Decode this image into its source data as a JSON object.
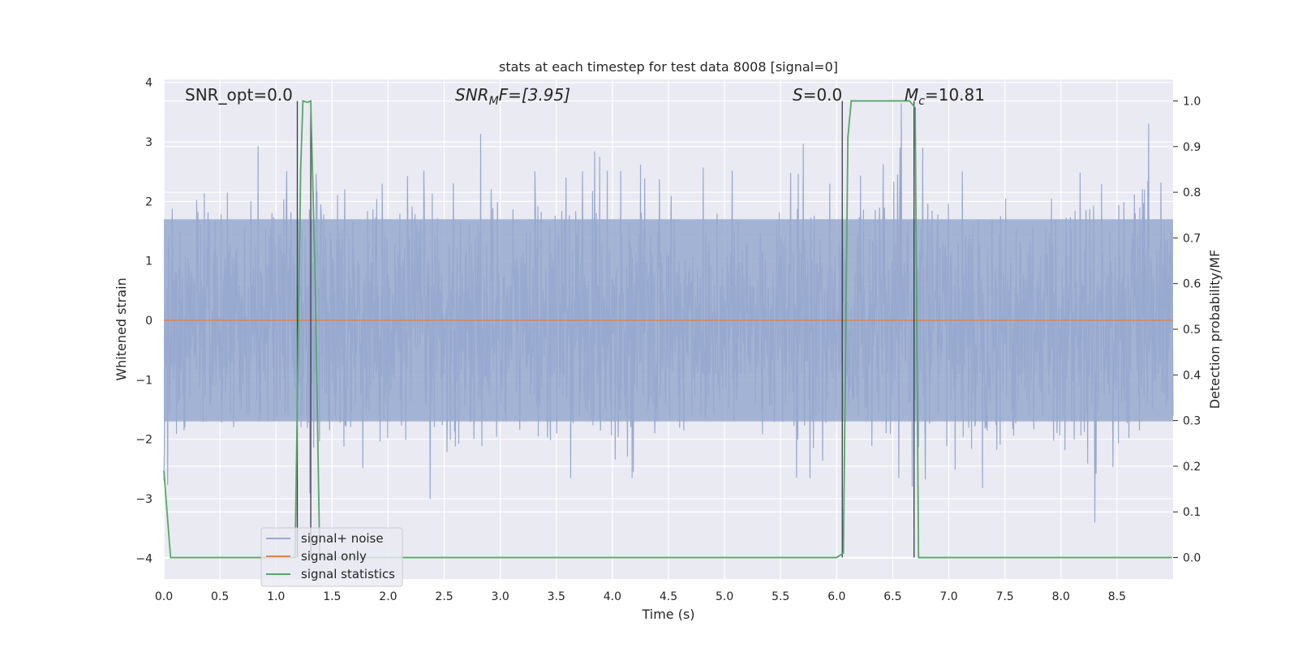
{
  "chart_data": {
    "type": "line",
    "title": "stats at each timestep for test data 8008 [signal=0]",
    "xlabel": "Time (s)",
    "ylabel_left": "Whitened strain",
    "ylabel_right": "Detection probability/MF",
    "xlim": [
      0.0,
      9.0
    ],
    "ylim_left": [
      -4.35,
      4.05
    ],
    "ylim_right": [
      -0.047,
      1.047
    ],
    "x_ticks": [
      "0.0",
      "0.5",
      "1.0",
      "1.5",
      "2.0",
      "2.5",
      "3.0",
      "3.5",
      "4.0",
      "4.5",
      "5.0",
      "5.5",
      "6.0",
      "6.5",
      "7.0",
      "7.5",
      "8.0",
      "8.5"
    ],
    "y_ticks_left": [
      "4",
      "3",
      "2",
      "1",
      "0",
      "−1",
      "−2",
      "−3",
      "−4"
    ],
    "y_ticks_right": [
      "1.0",
      "0.9",
      "0.8",
      "0.7",
      "0.6",
      "0.5",
      "0.4",
      "0.3",
      "0.2",
      "0.1",
      "0.0"
    ],
    "grid": true,
    "legend_placement": "lower-left",
    "annotations": {
      "snr_opt": "SNR_opt=0.0",
      "snr_mf_main": "SNR",
      "snr_mf_sub": "M",
      "snr_mf_rest": "F=[3.95]",
      "s_main": "S",
      "s_rest": "=0.0",
      "mc_main": "M",
      "mc_sub": "c",
      "mc_rest": "=10.81"
    },
    "vertical_markers_x": [
      1.19,
      1.31,
      6.05,
      6.69
    ],
    "series": [
      {
        "name": "signal+ noise",
        "color": "#97a9cf",
        "axis": "left",
        "description_values": {
          "typical_band": [
            -1.7,
            1.7
          ],
          "peaks_max": 3.6,
          "peaks_min": -3.9
        }
      },
      {
        "name": "signal only",
        "color": "#dd8452",
        "axis": "left",
        "x": [
          0.0,
          9.0
        ],
        "y": [
          0.0,
          0.0
        ]
      },
      {
        "name": "signal statistics",
        "color": "#55a868",
        "axis": "right",
        "x": [
          0.0,
          0.06,
          0.1,
          1.12,
          1.17,
          1.22,
          1.24,
          1.28,
          1.31,
          1.35,
          1.39,
          1.44,
          5.0,
          6.0,
          6.06,
          6.1,
          6.13,
          6.65,
          6.7,
          6.73,
          6.76,
          6.8,
          8.99
        ],
        "y": [
          0.19,
          0.0,
          0.0,
          0.0,
          0.0,
          0.85,
          1.0,
          0.997,
          1.0,
          0.6,
          0.0,
          0.0,
          0.0,
          0.0,
          0.01,
          0.92,
          1.0,
          1.0,
          0.985,
          0.0,
          0.0,
          0.0,
          0.0
        ]
      }
    ]
  }
}
